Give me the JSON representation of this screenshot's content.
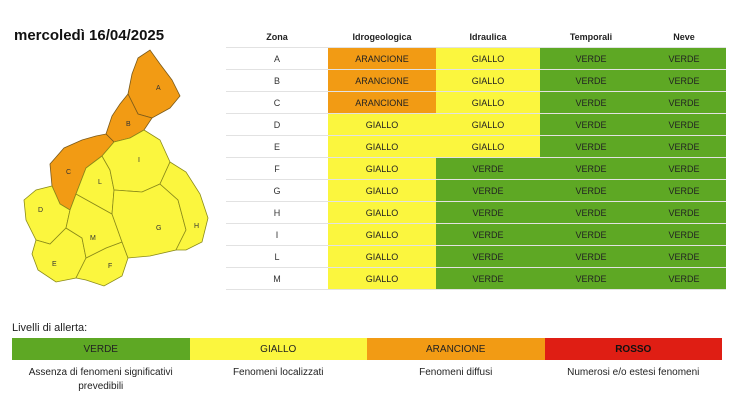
{
  "date_title": "mercoledì 16/04/2025",
  "colors": {
    "verde": "#5ea824",
    "giallo": "#fbf63e",
    "arancione": "#f29b14",
    "rosso": "#df1e14"
  },
  "table": {
    "headers": [
      "Zona",
      "Idrogeologica",
      "Idraulica",
      "Temporali",
      "Neve"
    ],
    "rows": [
      {
        "zona": "A",
        "idrogeologica": "ARANCIONE",
        "idraulica": "GIALLO",
        "temporali": "VERDE",
        "neve": "VERDE"
      },
      {
        "zona": "B",
        "idrogeologica": "ARANCIONE",
        "idraulica": "GIALLO",
        "temporali": "VERDE",
        "neve": "VERDE"
      },
      {
        "zona": "C",
        "idrogeologica": "ARANCIONE",
        "idraulica": "GIALLO",
        "temporali": "VERDE",
        "neve": "VERDE"
      },
      {
        "zona": "D",
        "idrogeologica": "GIALLO",
        "idraulica": "GIALLO",
        "temporali": "VERDE",
        "neve": "VERDE"
      },
      {
        "zona": "E",
        "idrogeologica": "GIALLO",
        "idraulica": "GIALLO",
        "temporali": "VERDE",
        "neve": "VERDE"
      },
      {
        "zona": "F",
        "idrogeologica": "GIALLO",
        "idraulica": "VERDE",
        "temporali": "VERDE",
        "neve": "VERDE"
      },
      {
        "zona": "G",
        "idrogeologica": "GIALLO",
        "idraulica": "VERDE",
        "temporali": "VERDE",
        "neve": "VERDE"
      },
      {
        "zona": "H",
        "idrogeologica": "GIALLO",
        "idraulica": "VERDE",
        "temporali": "VERDE",
        "neve": "VERDE"
      },
      {
        "zona": "I",
        "idrogeologica": "GIALLO",
        "idraulica": "VERDE",
        "temporali": "VERDE",
        "neve": "VERDE"
      },
      {
        "zona": "L",
        "idrogeologica": "GIALLO",
        "idraulica": "VERDE",
        "temporali": "VERDE",
        "neve": "VERDE"
      },
      {
        "zona": "M",
        "idrogeologica": "GIALLO",
        "idraulica": "VERDE",
        "temporali": "VERDE",
        "neve": "VERDE"
      }
    ]
  },
  "map": {
    "zones": [
      {
        "label": "A",
        "level": "ARANCIONE"
      },
      {
        "label": "B",
        "level": "ARANCIONE"
      },
      {
        "label": "C",
        "level": "ARANCIONE"
      },
      {
        "label": "D",
        "level": "GIALLO"
      },
      {
        "label": "E",
        "level": "GIALLO"
      },
      {
        "label": "F",
        "level": "GIALLO"
      },
      {
        "label": "G",
        "level": "GIALLO"
      },
      {
        "label": "H",
        "level": "GIALLO"
      },
      {
        "label": "I",
        "level": "GIALLO"
      },
      {
        "label": "L",
        "level": "GIALLO"
      },
      {
        "label": "M",
        "level": "GIALLO"
      }
    ]
  },
  "legend": {
    "title": "Livelli di allerta:",
    "items": [
      {
        "label": "VERDE",
        "description": "Assenza di fenomeni significativi prevedibili"
      },
      {
        "label": "GIALLO",
        "description": "Fenomeni localizzati"
      },
      {
        "label": "ARANCIONE",
        "description": "Fenomeni diffusi"
      },
      {
        "label": "ROSSO",
        "description": "Numerosi e/o estesi fenomeni"
      }
    ]
  }
}
